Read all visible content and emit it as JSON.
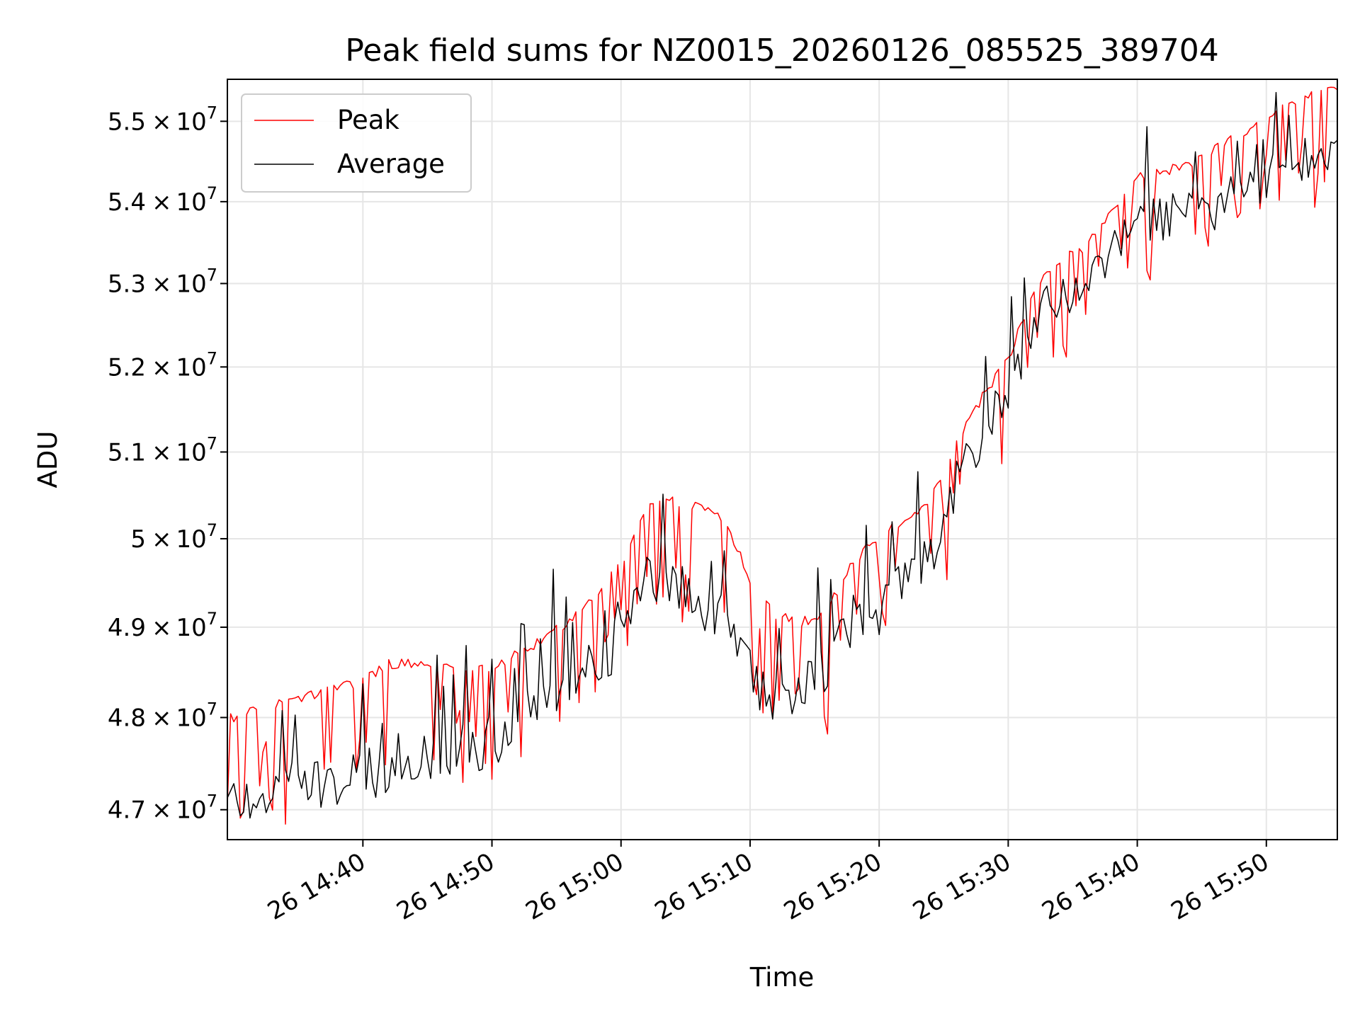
{
  "chart_data": {
    "type": "line",
    "title": "Peak field sums for NZ0015_20260126_085525_389704",
    "xlabel": "Time",
    "ylabel": "ADU",
    "y_scale": "log",
    "ylim": [
      46680000,
      55530000
    ],
    "x_range_minutes_after_1430": [
      -0.5,
      85.5
    ],
    "y_ticks": [
      {
        "value": 47000000,
        "mantissa": "4.7",
        "times": "×",
        "base": "10",
        "exponent": "7"
      },
      {
        "value": 48000000,
        "mantissa": "4.8",
        "times": "×",
        "base": "10",
        "exponent": "7"
      },
      {
        "value": 49000000,
        "mantissa": "4.9",
        "times": "×",
        "base": "10",
        "exponent": "7"
      },
      {
        "value": 50000000,
        "mantissa": "5",
        "times": "×",
        "base": "10",
        "exponent": "7"
      },
      {
        "value": 51000000,
        "mantissa": "5.1",
        "times": "×",
        "base": "10",
        "exponent": "7"
      },
      {
        "value": 52000000,
        "mantissa": "5.2",
        "times": "×",
        "base": "10",
        "exponent": "7"
      },
      {
        "value": 53000000,
        "mantissa": "5.3",
        "times": "×",
        "base": "10",
        "exponent": "7"
      },
      {
        "value": 54000000,
        "mantissa": "5.4",
        "times": "×",
        "base": "10",
        "exponent": "7"
      },
      {
        "value": 55000000,
        "mantissa": "5.5",
        "times": "×",
        "base": "10",
        "exponent": "7"
      }
    ],
    "x_ticks": [
      {
        "minutes": 10,
        "label": "26 14:40"
      },
      {
        "minutes": 20,
        "label": "26 14:50"
      },
      {
        "minutes": 30,
        "label": "26 15:00"
      },
      {
        "minutes": 40,
        "label": "26 15:10"
      },
      {
        "minutes": 50,
        "label": "26 15:20"
      },
      {
        "minutes": 60,
        "label": "26 15:30"
      },
      {
        "minutes": 70,
        "label": "26 15:40"
      },
      {
        "minutes": 80,
        "label": "26 15:50"
      }
    ],
    "legend": {
      "position": "top-left",
      "entries": [
        "Peak",
        "Average"
      ]
    },
    "grid": true,
    "sample_interval_minutes": 0.25,
    "series": [
      {
        "name": "Peak",
        "color": "#ff0000",
        "anchors": [
          [
            -0.5,
            48.05
          ],
          [
            0,
            48.0
          ],
          [
            10,
            48.4
          ],
          [
            12,
            48.6
          ],
          [
            20,
            48.55
          ],
          [
            24,
            48.85
          ],
          [
            27,
            49.2
          ],
          [
            30,
            49.7
          ],
          [
            32,
            50.4
          ],
          [
            33,
            50.48
          ],
          [
            35,
            50.4
          ],
          [
            38,
            50.25
          ],
          [
            40,
            49.55
          ],
          [
            42,
            49.15
          ],
          [
            44,
            49.05
          ],
          [
            46,
            49.2
          ],
          [
            48,
            49.75
          ],
          [
            50,
            50.0
          ],
          [
            54,
            50.45
          ],
          [
            56,
            51.1
          ],
          [
            58,
            51.65
          ],
          [
            60,
            52.1
          ],
          [
            62,
            52.9
          ],
          [
            64,
            53.3
          ],
          [
            66,
            53.45
          ],
          [
            68,
            53.85
          ],
          [
            70,
            54.3
          ],
          [
            74,
            54.45
          ],
          [
            78,
            54.85
          ],
          [
            82,
            55.25
          ],
          [
            85.5,
            55.45
          ]
        ],
        "dip_probability": 0.32,
        "dip_depth": [
          0.4,
          1.4
        ]
      },
      {
        "name": "Average",
        "color": "#000000",
        "anchors": [
          [
            -0.5,
            47.1
          ],
          [
            5,
            47.25
          ],
          [
            10,
            47.35
          ],
          [
            15,
            47.55
          ],
          [
            20,
            47.75
          ],
          [
            24,
            48.25
          ],
          [
            27,
            48.5
          ],
          [
            30,
            48.85
          ],
          [
            32,
            49.55
          ],
          [
            35,
            49.4
          ],
          [
            38,
            49.1
          ],
          [
            40,
            48.45
          ],
          [
            42,
            48.2
          ],
          [
            44,
            48.3
          ],
          [
            46,
            48.6
          ],
          [
            48,
            49.1
          ],
          [
            50,
            49.2
          ],
          [
            54,
            49.8
          ],
          [
            56,
            50.6
          ],
          [
            58,
            51.2
          ],
          [
            60,
            51.7
          ],
          [
            62,
            52.45
          ],
          [
            64,
            52.9
          ],
          [
            66,
            52.95
          ],
          [
            68,
            53.3
          ],
          [
            70,
            53.7
          ],
          [
            74,
            53.85
          ],
          [
            78,
            54.05
          ],
          [
            82,
            54.45
          ],
          [
            85.5,
            54.6
          ]
        ],
        "noise": 0.6,
        "spike_probability": 0.12,
        "spike_height": [
          0.4,
          1.2
        ]
      }
    ]
  }
}
